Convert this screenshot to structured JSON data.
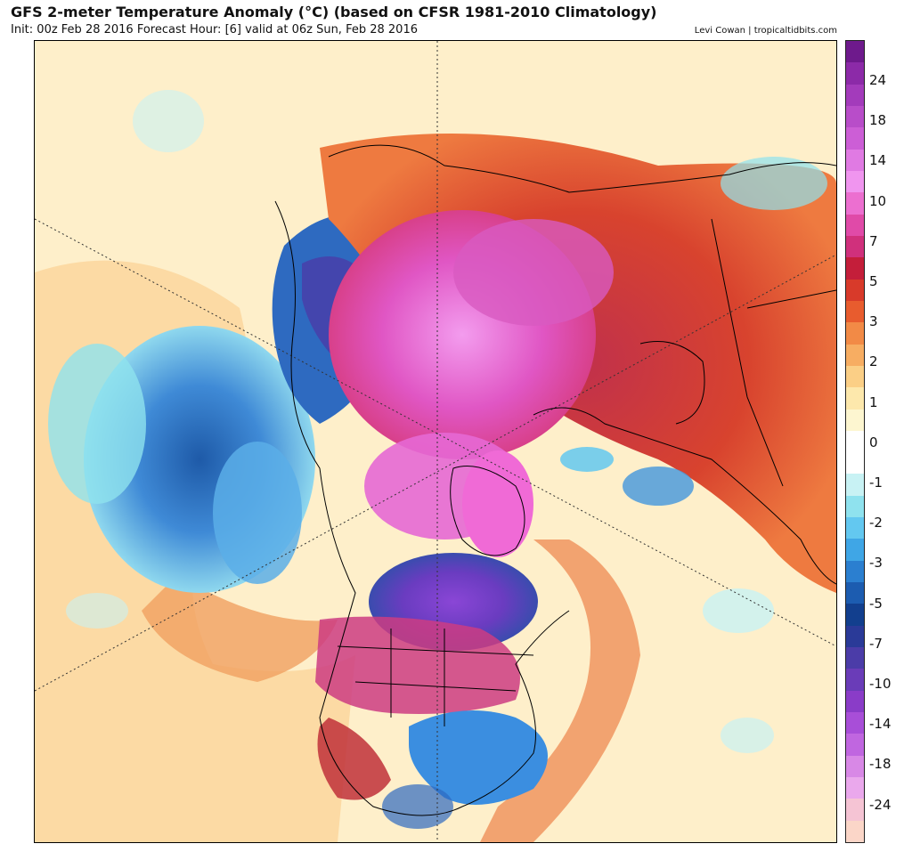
{
  "header": {
    "title": "GFS 2-meter Temperature Anomaly (°C) (based on CFSR 1981-2010 Climatology)",
    "subtitle": "Init: 00z Feb 28 2016   Forecast Hour: [6]   valid at 06z Sun, Feb 28 2016",
    "credit": "Levi Cowan | tropicaltidbits.com"
  },
  "colorbar": {
    "labels": [
      "24",
      "18",
      "14",
      "10",
      "7",
      "5",
      "3",
      "2",
      "1",
      "0",
      "-1",
      "-2",
      "-3",
      "-5",
      "-7",
      "-10",
      "-14",
      "-18",
      "-24"
    ],
    "colors": [
      "#6e1a8c",
      "#8c2aa8",
      "#a33bbb",
      "#b84dc9",
      "#cc5ed6",
      "#e07ae3",
      "#f095ef",
      "#ec6fd0",
      "#e04aa8",
      "#d0307c",
      "#c41e3a",
      "#d83a2a",
      "#e85c2e",
      "#f28a46",
      "#f7ad62",
      "#fbcf86",
      "#fde8ac",
      "#fdf6d0",
      "#ffffff",
      "#ffffff",
      "#c8f2f4",
      "#8fe2ee",
      "#63c8f0",
      "#3fa6e6",
      "#2b7fd0",
      "#1c5cb0",
      "#123f8e",
      "#2a3a98",
      "#4b3ca8",
      "#6a3cb8",
      "#8a3cc8",
      "#a84ed8",
      "#c066e0",
      "#d888e6",
      "#eaa8ec",
      "#f5c4d4",
      "#fbd6c8"
    ]
  },
  "map": {
    "projection": "polar-stereographic",
    "fill_colors": {
      "ocean_warm": "#fbdca0",
      "ocean_neutral": "#fff8e0",
      "pacific_cold": "#4d9bdc",
      "pacific_cold_core": "#1e5aa8",
      "arctic_warm": "#e45ac8",
      "arctic_warm_core": "#f08ce8",
      "siberia_cold": "#2e6ac0",
      "canada_very_cold": "#7a40c8",
      "eurasia_warm": "#d8432e",
      "se_us_cold": "#3b8ee0",
      "greenland_warm": "#f06ad6"
    },
    "linework_color": "#000000"
  }
}
